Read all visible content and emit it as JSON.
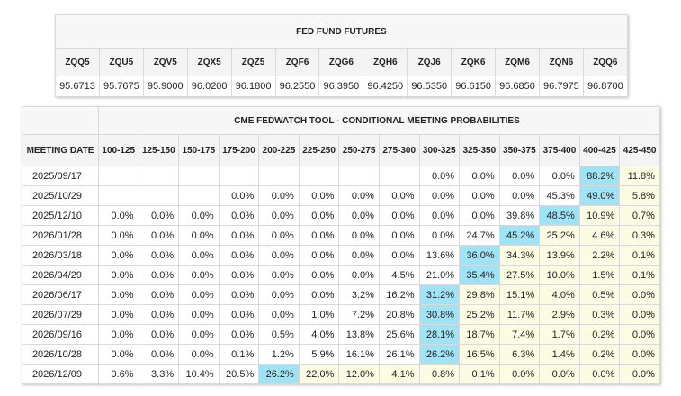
{
  "futures": {
    "title": "FED FUND FUTURES",
    "contracts": [
      {
        "code": "ZQQ5",
        "price": "95.6713"
      },
      {
        "code": "ZQU5",
        "price": "95.7675"
      },
      {
        "code": "ZQV5",
        "price": "95.9000"
      },
      {
        "code": "ZQX5",
        "price": "96.0200"
      },
      {
        "code": "ZQZ5",
        "price": "96.1800"
      },
      {
        "code": "ZQF6",
        "price": "96.2550"
      },
      {
        "code": "ZQG6",
        "price": "96.3950"
      },
      {
        "code": "ZQH6",
        "price": "96.4250"
      },
      {
        "code": "ZQJ6",
        "price": "96.5350"
      },
      {
        "code": "ZQK6",
        "price": "96.6150"
      },
      {
        "code": "ZQM6",
        "price": "96.6850"
      },
      {
        "code": "ZQN6",
        "price": "96.7975"
      },
      {
        "code": "ZQQ6",
        "price": "96.8700"
      }
    ]
  },
  "probabilities": {
    "title": "CME FEDWATCH TOOL - CONDITIONAL MEETING PROBABILITIES",
    "date_header": "MEETING DATE",
    "ranges": [
      "100-125",
      "125-150",
      "150-175",
      "175-200",
      "200-225",
      "225-250",
      "250-275",
      "275-300",
      "300-325",
      "325-350",
      "350-375",
      "375-400",
      "400-425",
      "425-450"
    ],
    "rows": [
      {
        "date": "2025/09/17",
        "cells": [
          "",
          "",
          "",
          "",
          "",
          "",
          "",
          "",
          "0.0%",
          "0.0%",
          "0.0%",
          "0.0%",
          "88.2%",
          "11.8%"
        ]
      },
      {
        "date": "2025/10/29",
        "cells": [
          "",
          "",
          "",
          "0.0%",
          "0.0%",
          "0.0%",
          "0.0%",
          "0.0%",
          "0.0%",
          "0.0%",
          "0.0%",
          "45.3%",
          "49.0%",
          "5.8%"
        ]
      },
      {
        "date": "2025/12/10",
        "cells": [
          "0.0%",
          "0.0%",
          "0.0%",
          "0.0%",
          "0.0%",
          "0.0%",
          "0.0%",
          "0.0%",
          "0.0%",
          "0.0%",
          "39.8%",
          "48.5%",
          "10.9%",
          "0.7%"
        ]
      },
      {
        "date": "2026/01/28",
        "cells": [
          "0.0%",
          "0.0%",
          "0.0%",
          "0.0%",
          "0.0%",
          "0.0%",
          "0.0%",
          "0.0%",
          "0.0%",
          "24.7%",
          "45.2%",
          "25.2%",
          "4.6%",
          "0.3%"
        ]
      },
      {
        "date": "2026/03/18",
        "cells": [
          "0.0%",
          "0.0%",
          "0.0%",
          "0.0%",
          "0.0%",
          "0.0%",
          "0.0%",
          "0.0%",
          "13.6%",
          "36.0%",
          "34.3%",
          "13.9%",
          "2.2%",
          "0.1%"
        ]
      },
      {
        "date": "2026/04/29",
        "cells": [
          "0.0%",
          "0.0%",
          "0.0%",
          "0.0%",
          "0.0%",
          "0.0%",
          "0.0%",
          "4.5%",
          "21.0%",
          "35.4%",
          "27.5%",
          "10.0%",
          "1.5%",
          "0.1%"
        ]
      },
      {
        "date": "2026/06/17",
        "cells": [
          "0.0%",
          "0.0%",
          "0.0%",
          "0.0%",
          "0.0%",
          "0.0%",
          "3.2%",
          "16.2%",
          "31.2%",
          "29.8%",
          "15.1%",
          "4.0%",
          "0.5%",
          "0.0%"
        ]
      },
      {
        "date": "2026/07/29",
        "cells": [
          "0.0%",
          "0.0%",
          "0.0%",
          "0.0%",
          "0.0%",
          "1.0%",
          "7.2%",
          "20.8%",
          "30.8%",
          "25.2%",
          "11.7%",
          "2.9%",
          "0.3%",
          "0.0%"
        ]
      },
      {
        "date": "2026/09/16",
        "cells": [
          "0.0%",
          "0.0%",
          "0.0%",
          "0.0%",
          "0.5%",
          "4.0%",
          "13.8%",
          "25.6%",
          "28.1%",
          "18.7%",
          "7.4%",
          "1.7%",
          "0.2%",
          "0.0%"
        ]
      },
      {
        "date": "2026/10/28",
        "cells": [
          "0.0%",
          "0.0%",
          "0.0%",
          "0.1%",
          "1.2%",
          "5.9%",
          "16.1%",
          "26.1%",
          "26.2%",
          "16.5%",
          "6.3%",
          "1.4%",
          "0.2%",
          "0.0%"
        ]
      },
      {
        "date": "2026/12/09",
        "cells": [
          "0.6%",
          "3.3%",
          "10.4%",
          "20.5%",
          "26.2%",
          "22.0%",
          "12.0%",
          "4.1%",
          "0.8%",
          "0.1%",
          "0.0%",
          "0.0%",
          "0.0%",
          "0.0%"
        ]
      }
    ],
    "highlight_rule": "max cell per row in blue; cells to the right of the max in light yellow"
  },
  "colors": {
    "max_cell": "#9fe3f6",
    "above_max_cell": "#fcfce3",
    "header_bg": "#f4f4f4",
    "border": "#d9d9d9"
  },
  "chart_data": {
    "type": "table",
    "title": "CME FEDWATCH TOOL - CONDITIONAL MEETING PROBABILITIES",
    "row_header": "MEETING DATE",
    "columns": [
      "100-125",
      "125-150",
      "150-175",
      "175-200",
      "200-225",
      "225-250",
      "250-275",
      "275-300",
      "300-325",
      "325-350",
      "350-375",
      "375-400",
      "400-425",
      "425-450"
    ],
    "rows": [
      "2025/09/17",
      "2025/10/29",
      "2025/12/10",
      "2026/01/28",
      "2026/03/18",
      "2026/04/29",
      "2026/06/17",
      "2026/07/29",
      "2026/09/16",
      "2026/10/28",
      "2026/12/09"
    ],
    "values": [
      [
        null,
        null,
        null,
        null,
        null,
        null,
        null,
        null,
        0.0,
        0.0,
        0.0,
        0.0,
        88.2,
        11.8
      ],
      [
        null,
        null,
        null,
        0.0,
        0.0,
        0.0,
        0.0,
        0.0,
        0.0,
        0.0,
        0.0,
        45.3,
        49.0,
        5.8
      ],
      [
        0.0,
        0.0,
        0.0,
        0.0,
        0.0,
        0.0,
        0.0,
        0.0,
        0.0,
        0.0,
        39.8,
        48.5,
        10.9,
        0.7
      ],
      [
        0.0,
        0.0,
        0.0,
        0.0,
        0.0,
        0.0,
        0.0,
        0.0,
        0.0,
        24.7,
        45.2,
        25.2,
        4.6,
        0.3
      ],
      [
        0.0,
        0.0,
        0.0,
        0.0,
        0.0,
        0.0,
        0.0,
        0.0,
        13.6,
        36.0,
        34.3,
        13.9,
        2.2,
        0.1
      ],
      [
        0.0,
        0.0,
        0.0,
        0.0,
        0.0,
        0.0,
        0.0,
        4.5,
        21.0,
        35.4,
        27.5,
        10.0,
        1.5,
        0.1
      ],
      [
        0.0,
        0.0,
        0.0,
        0.0,
        0.0,
        0.0,
        3.2,
        16.2,
        31.2,
        29.8,
        15.1,
        4.0,
        0.5,
        0.0
      ],
      [
        0.0,
        0.0,
        0.0,
        0.0,
        0.0,
        1.0,
        7.2,
        20.8,
        30.8,
        25.2,
        11.7,
        2.9,
        0.3,
        0.0
      ],
      [
        0.0,
        0.0,
        0.0,
        0.0,
        0.5,
        4.0,
        13.8,
        25.6,
        28.1,
        18.7,
        7.4,
        1.7,
        0.2,
        0.0
      ],
      [
        0.0,
        0.0,
        0.0,
        0.1,
        1.2,
        5.9,
        16.1,
        26.1,
        26.2,
        16.5,
        6.3,
        1.4,
        0.2,
        0.0
      ],
      [
        0.6,
        3.3,
        10.4,
        20.5,
        26.2,
        22.0,
        12.0,
        4.1,
        0.8,
        0.1,
        0.0,
        0.0,
        0.0,
        0.0
      ]
    ]
  }
}
